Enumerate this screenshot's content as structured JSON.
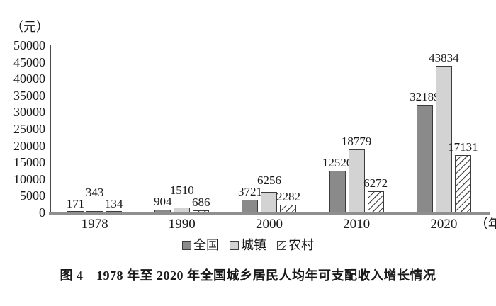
{
  "figure": {
    "caption": "图 4　1978 年至 2020 年全国城乡居民人均年可支配收入增长情况"
  },
  "chart_data": {
    "type": "bar",
    "title": "1978年至2020年全国城乡居民人均年可支配收入增长情况",
    "y_unit": "（元）",
    "x_suffix": "（年）",
    "categories": [
      "1978",
      "1990",
      "2000",
      "2010",
      "2020"
    ],
    "series": [
      {
        "id": "national",
        "name": "全国",
        "fill": "#8a8a8a",
        "values": [
          171,
          904,
          3721,
          12520,
          32189
        ]
      },
      {
        "id": "urban",
        "name": "城镇",
        "fill": "#d3d3d3",
        "values": [
          343,
          1510,
          6256,
          18779,
          43834
        ]
      },
      {
        "id": "rural",
        "name": "农村",
        "fill": "hatch",
        "values": [
          134,
          686,
          2282,
          6272,
          17131
        ]
      }
    ],
    "ylim": [
      0,
      50000
    ],
    "y_ticks": [
      0,
      5000,
      10000,
      15000,
      20000,
      25000,
      30000,
      35000,
      40000,
      45000,
      50000
    ],
    "legend_position": "bottom",
    "grid": false
  },
  "colors": {
    "national_fill": "#8a8a8a",
    "urban_fill": "#d3d3d3",
    "hatch_line": "#4a4a4a",
    "bar_border": "#3c3c3c",
    "x_axis": "#8f8f8f",
    "y_axis": "#4a4a4a",
    "text": "#1a1a1a",
    "background": "#ffffff"
  }
}
